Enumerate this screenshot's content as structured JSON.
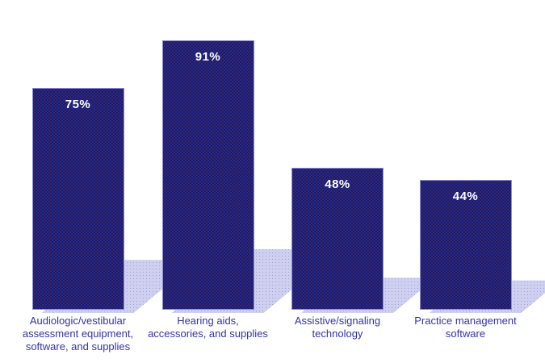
{
  "chart_data": {
    "type": "bar",
    "title": "",
    "xlabel": "",
    "ylabel": "",
    "ylim": [
      0,
      100
    ],
    "grid": false,
    "legend": "none",
    "categories": [
      "Audiologic/vestibular assessment equipment, software, and supplies",
      "Hearing aids, accessories, and supplies",
      "Assistive/signaling technology",
      "Practice management software"
    ],
    "values": [
      75,
      91,
      48,
      44
    ],
    "value_labels": [
      "75%",
      "91%",
      "48%",
      "44%"
    ],
    "colors": {
      "bar": "#1B1B6B",
      "bar_border": "#8D8DD0",
      "bar_dot_a": "#7A3C7A",
      "bar_dot_b": "#3C3CAA",
      "shadow": "#CFCFF2",
      "shadow_dot": "#A0A0CC",
      "value_label": "#FFFFFF",
      "category_label": "#3333A6",
      "background": "#FFFFFF"
    }
  }
}
